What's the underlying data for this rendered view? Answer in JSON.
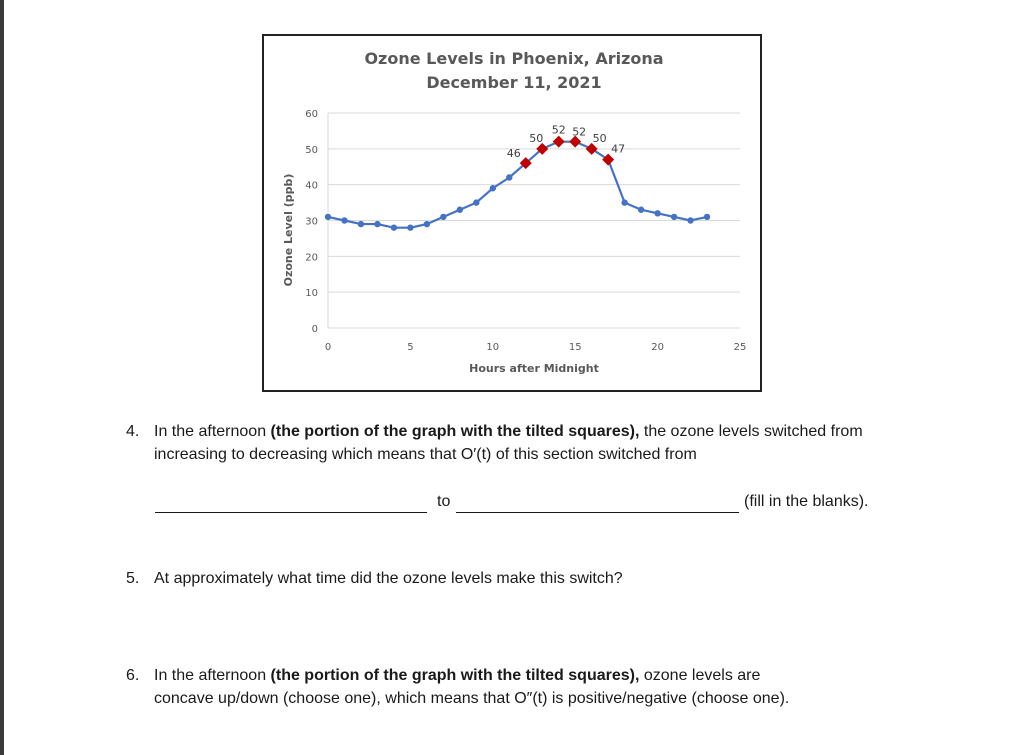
{
  "chart_data": {
    "type": "line",
    "title": "Ozone Levels in Phoenix, Arizona",
    "subtitle": "December 11, 2021",
    "xlabel": "Hours after Midnight",
    "ylabel": "Ozone Level (ppb)",
    "xlim": [
      0,
      25
    ],
    "ylim": [
      0,
      60
    ],
    "xticks": [
      0,
      5,
      10,
      15,
      20,
      25
    ],
    "yticks": [
      0,
      10,
      20,
      30,
      40,
      50,
      60
    ],
    "grid": "horizontal",
    "colors": {
      "line": "#4472C4",
      "highlight": "#C00000",
      "grid": "#d9d9d9",
      "text": "#595959"
    },
    "series": [
      {
        "x": [
          0,
          1,
          2,
          3,
          4,
          5,
          6,
          7,
          8,
          9,
          10,
          11,
          12,
          13,
          14,
          15,
          16,
          17,
          18,
          19,
          20,
          21,
          22,
          23
        ],
        "y": [
          31,
          30,
          29,
          29,
          28,
          28,
          29,
          31,
          33,
          35,
          39,
          42,
          46,
          50,
          52,
          52,
          50,
          47,
          35,
          33,
          32,
          31,
          30,
          31
        ]
      }
    ],
    "highlight_points": [
      {
        "x": 12,
        "y": 46,
        "label": "46"
      },
      {
        "x": 13,
        "y": 50,
        "label": "50"
      },
      {
        "x": 14,
        "y": 52,
        "label": "52"
      },
      {
        "x": 15,
        "y": 52,
        "label": "52"
      },
      {
        "x": 16,
        "y": 50,
        "label": "50"
      },
      {
        "x": 17,
        "y": 47,
        "label": "47"
      }
    ]
  },
  "questions": {
    "q4": {
      "number": "4.",
      "line1_pre": "In the afternoon ",
      "line1_bold": "(the portion of the graph with the tilted squares),",
      "line1_post": " the ozone levels switched from",
      "line2": "increasing to decreasing which means that O′(t) of this section switched from",
      "to_word": "to",
      "fill_note": "(fill in the blanks)."
    },
    "q5": {
      "number": "5.",
      "text": "At approximately what time did the ozone levels make this switch?"
    },
    "q6": {
      "number": "6.",
      "line1_pre": "In the afternoon ",
      "line1_bold": "(the portion of the graph with the tilted squares),",
      "line1_post": " ozone levels are",
      "line2": "concave up/down (choose one), which means that O″(t) is positive/negative (choose one)."
    }
  }
}
